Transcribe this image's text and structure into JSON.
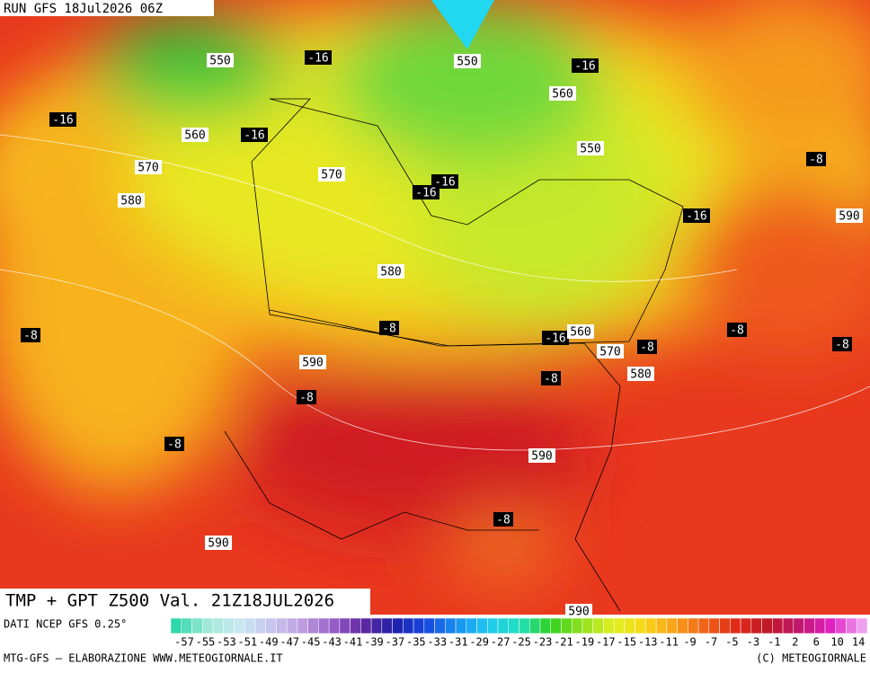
{
  "header": {
    "run": "RUN GFS 18Jul2026 06Z"
  },
  "title": "TMP + GPT Z500 Val. 21Z18JUL2026",
  "contour_labels": [
    "550",
    "-16",
    "550",
    "-16",
    "560",
    "-16",
    "560",
    "-16",
    "550",
    "570",
    "570",
    "-16",
    "-16",
    "-8",
    "580",
    "-16",
    "590",
    "580",
    "-8",
    "-8",
    "-8",
    "-16",
    "560",
    "570",
    "-8",
    "-8",
    "590",
    "580",
    "-8",
    "-8",
    "-8",
    "590",
    "-8",
    "590",
    "590"
  ],
  "legend": {
    "source": "DATI NCEP GFS 0.25°",
    "scale_labels": [
      "-57",
      "-55",
      "-53",
      "-51",
      "-49",
      "-47",
      "-45",
      "-43",
      "-41",
      "-39",
      "-37",
      "-35",
      "-33",
      "-31",
      "-29",
      "-27",
      "-25",
      "-23",
      "-21",
      "-19",
      "-17",
      "-15",
      "-13",
      "-11",
      "-9",
      "-7",
      "-5",
      "-3",
      "-1",
      "2",
      "6",
      "10",
      "14"
    ]
  },
  "footer": {
    "credit": "MTG-GFS – ELABORAZIONE WWW.METEOGIORNALE.IT",
    "copyright": "(C) METEOGIORNALE"
  }
}
